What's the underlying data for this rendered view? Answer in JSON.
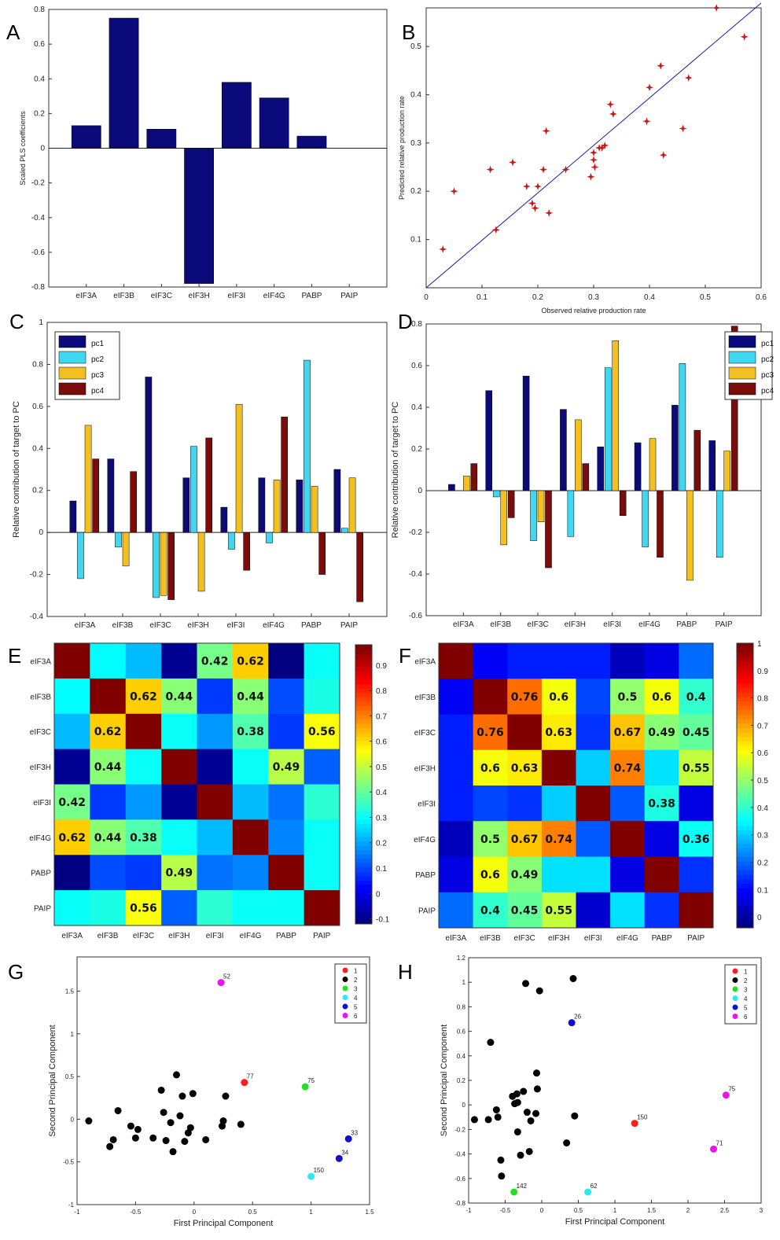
{
  "chart_data": [
    {
      "panel": "A",
      "type": "bar",
      "categories": [
        "eIF3A",
        "eIF3B",
        "eIF3C",
        "eIF3H",
        "eIF3I",
        "eIF4G",
        "PABP",
        "PAIP"
      ],
      "values": [
        0.13,
        0.75,
        0.11,
        -0.78,
        0.38,
        0.29,
        0.07,
        0
      ],
      "ylabel": "Scaled PLS coefficients",
      "ylim": [
        -0.8,
        0.8
      ],
      "yticks": [
        "0.8",
        "0.6",
        "0.4",
        "0.2",
        "0",
        "-0.2",
        "-0.4",
        "-0.6",
        "-0.8"
      ],
      "color": "#0a0a7a"
    },
    {
      "panel": "B",
      "type": "scatter",
      "xlabel": "Observed relative production rate",
      "ylabel": "Predicted relative production rate",
      "xlim": [
        0,
        0.6
      ],
      "ylim": [
        0,
        0.58
      ],
      "xticks": [
        "0",
        "0.1",
        "0.2",
        "0.3",
        "0.4",
        "0.5",
        "0.6"
      ],
      "yticks": [
        "0.1",
        "0.2",
        "0.3",
        "0.4",
        "0.5"
      ],
      "points": [
        [
          0.03,
          0.08
        ],
        [
          0.05,
          0.2
        ],
        [
          0.115,
          0.245
        ],
        [
          0.125,
          0.12
        ],
        [
          0.155,
          0.26
        ],
        [
          0.18,
          0.21
        ],
        [
          0.19,
          0.175
        ],
        [
          0.195,
          0.165
        ],
        [
          0.2,
          0.21
        ],
        [
          0.21,
          0.245
        ],
        [
          0.215,
          0.325
        ],
        [
          0.22,
          0.155
        ],
        [
          0.25,
          0.245
        ],
        [
          0.295,
          0.23
        ],
        [
          0.3,
          0.28
        ],
        [
          0.3,
          0.265
        ],
        [
          0.302,
          0.25
        ],
        [
          0.31,
          0.29
        ],
        [
          0.315,
          0.29
        ],
        [
          0.32,
          0.295
        ],
        [
          0.33,
          0.38
        ],
        [
          0.335,
          0.36
        ],
        [
          0.395,
          0.345
        ],
        [
          0.4,
          0.415
        ],
        [
          0.42,
          0.46
        ],
        [
          0.425,
          0.275
        ],
        [
          0.46,
          0.33
        ],
        [
          0.47,
          0.435
        ],
        [
          0.52,
          0.58
        ],
        [
          0.57,
          0.52
        ]
      ],
      "fit_line": [
        [
          0,
          0
        ],
        [
          0.6,
          0.59
        ]
      ],
      "marker_color": "#c81818",
      "line_color": "#1a1aa0"
    },
    {
      "panel": "C",
      "type": "bar",
      "categories": [
        "eIF3A",
        "eIF3B",
        "eIF3C",
        "eIF3H",
        "eIF3I",
        "eIF4G",
        "PABP",
        "PAIP"
      ],
      "ylabel": "Relative contribution of target to PC",
      "ylim": [
        -0.4,
        1
      ],
      "yticks": [
        "1",
        "0.8",
        "0.6",
        "0.4",
        "0.2",
        "0",
        "-0.2",
        "-0.4"
      ],
      "series": [
        {
          "name": "pc1",
          "color": "#0a0a7a",
          "values": [
            0.15,
            0.35,
            0.74,
            0.26,
            0.12,
            0.26,
            0.25,
            0.3
          ]
        },
        {
          "name": "pc2",
          "color": "#40d8f0",
          "values": [
            -0.22,
            -0.07,
            -0.31,
            0.41,
            -0.08,
            -0.05,
            0.82,
            0.02
          ]
        },
        {
          "name": "pc3",
          "color": "#f4c020",
          "values": [
            0.51,
            -0.16,
            -0.3,
            -0.28,
            0.61,
            0.25,
            0.22,
            0.26
          ]
        },
        {
          "name": "pc4",
          "color": "#7a0c0c",
          "values": [
            0.35,
            0.29,
            -0.32,
            0.45,
            -0.18,
            0.55,
            -0.2,
            -0.33
          ]
        }
      ],
      "legend": "top-left"
    },
    {
      "panel": "D",
      "type": "bar",
      "categories": [
        "eIF3A",
        "eIF3B",
        "eIF3C",
        "eIF3H",
        "eIF3I",
        "eIF4G",
        "PABP",
        "PAIP"
      ],
      "ylabel": "Relative contribution of target to PC",
      "ylim": [
        -0.6,
        0.8
      ],
      "yticks": [
        "0.8",
        "0.6",
        "0.4",
        "0.2",
        "0",
        "-0.2",
        "-0.4",
        "-0.6"
      ],
      "series": [
        {
          "name": "pc1",
          "color": "#0a0a7a",
          "values": [
            0.03,
            0.48,
            0.55,
            0.39,
            0.21,
            0.23,
            0.41,
            0.24
          ]
        },
        {
          "name": "pc2",
          "color": "#40d8f0",
          "values": [
            0,
            -0.03,
            -0.24,
            -0.22,
            0.59,
            -0.27,
            0.61,
            -0.32
          ]
        },
        {
          "name": "pc3",
          "color": "#f4c020",
          "values": [
            0.07,
            -0.26,
            -0.15,
            0.34,
            0.72,
            0.25,
            -0.43,
            0.19
          ]
        },
        {
          "name": "pc4",
          "color": "#7a0c0c",
          "values": [
            0.13,
            -0.13,
            -0.37,
            0.13,
            -0.12,
            -0.32,
            0.29,
            0.79
          ]
        }
      ],
      "legend": "top-right"
    },
    {
      "panel": "E",
      "type": "heatmap",
      "rows": [
        "eIF3A",
        "eIF3B",
        "eIF3C",
        "eIF3H",
        "eIF3I",
        "eIF4G",
        "PABP",
        "PAIP"
      ],
      "cols": [
        "eIF3A",
        "eIF3B",
        "eIF3C",
        "eIF3H",
        "eIF3I",
        "eIF4G",
        "PABP",
        "PAIP"
      ],
      "matrix": [
        [
          1,
          0.29,
          0.22,
          -0.1,
          0.42,
          0.62,
          -0.12,
          0.3
        ],
        [
          0.29,
          1,
          0.62,
          0.44,
          0.08,
          0.44,
          0.1,
          0.32
        ],
        [
          0.22,
          0.62,
          1,
          0.3,
          0.18,
          0.38,
          0.08,
          0.56
        ],
        [
          -0.1,
          0.44,
          0.3,
          1,
          -0.1,
          0.3,
          0.49,
          0.12
        ],
        [
          0.42,
          0.08,
          0.18,
          -0.1,
          1,
          0.22,
          0.14,
          0.34
        ],
        [
          0.62,
          0.44,
          0.38,
          0.3,
          0.22,
          1,
          0.16,
          0.3
        ],
        [
          -0.12,
          0.1,
          0.08,
          0.49,
          0.14,
          0.16,
          1,
          0.3
        ],
        [
          0.3,
          0.32,
          0.56,
          0.12,
          0.34,
          0.3,
          0.3,
          1
        ]
      ],
      "labels": [
        [
          null,
          null,
          null,
          null,
          "0.42",
          "0.62",
          null,
          null
        ],
        [
          null,
          null,
          "0.62",
          "0.44",
          null,
          "0.44",
          null,
          null
        ],
        [
          null,
          "0.62",
          null,
          null,
          null,
          "0.38",
          null,
          "0.56"
        ],
        [
          null,
          "0.44",
          null,
          null,
          null,
          null,
          "0.49",
          null
        ],
        [
          "0.42",
          null,
          null,
          null,
          null,
          null,
          null,
          null
        ],
        [
          "0.62",
          "0.44",
          "0.38",
          null,
          null,
          null,
          null,
          null
        ],
        [
          null,
          null,
          null,
          "0.49",
          null,
          null,
          null,
          null
        ],
        [
          null,
          null,
          "0.56",
          null,
          null,
          null,
          null,
          null
        ]
      ],
      "clim": [
        -0.12,
        0.98
      ],
      "colorbar_ticks": [
        "0.9",
        "0.8",
        "0.7",
        "0.6",
        "0.5",
        "0.4",
        "0.3",
        "0.2",
        "0.1",
        "0",
        "-0.1"
      ],
      "colormap": "jet"
    },
    {
      "panel": "F",
      "type": "heatmap",
      "rows": [
        "eIF3A",
        "eIF3B",
        "eIF3C",
        "eIF3H",
        "eIF3I",
        "eIF4G",
        "PABP",
        "PAIP"
      ],
      "cols": [
        "eIF3A",
        "eIF3B",
        "eIF3C",
        "eIF3H",
        "eIF3I",
        "eIF4G",
        "PABP",
        "PAIP"
      ],
      "matrix": [
        [
          1,
          0.08,
          0.12,
          0.12,
          0.12,
          0.02,
          0.06,
          0.2
        ],
        [
          0.08,
          1,
          0.76,
          0.6,
          0.16,
          0.5,
          0.6,
          0.4
        ],
        [
          0.12,
          0.76,
          1,
          0.63,
          0.14,
          0.67,
          0.49,
          0.45
        ],
        [
          0.12,
          0.6,
          0.63,
          1,
          0.3,
          0.74,
          0.32,
          0.55
        ],
        [
          0.12,
          0.16,
          0.14,
          0.3,
          1,
          0.18,
          0.38,
          0.06
        ],
        [
          0.02,
          0.5,
          0.67,
          0.74,
          0.18,
          1,
          0.06,
          0.36
        ],
        [
          0.06,
          0.6,
          0.49,
          0.32,
          0.32,
          0.06,
          1,
          0.14
        ],
        [
          0.2,
          0.4,
          0.45,
          0.55,
          0.04,
          0.32,
          0.14,
          1
        ]
      ],
      "labels": [
        [
          null,
          null,
          null,
          null,
          null,
          null,
          null,
          null
        ],
        [
          null,
          null,
          "0.76",
          "0.6",
          null,
          "0.5",
          "0.6",
          "0.4"
        ],
        [
          null,
          "0.76",
          null,
          "0.63",
          null,
          "0.67",
          "0.49",
          "0.45"
        ],
        [
          null,
          "0.6",
          "0.63",
          null,
          null,
          "0.74",
          null,
          "0.55"
        ],
        [
          null,
          null,
          null,
          null,
          null,
          null,
          "0.38",
          null
        ],
        [
          null,
          "0.5",
          "0.67",
          "0.74",
          null,
          null,
          null,
          "0.36"
        ],
        [
          null,
          "0.6",
          "0.49",
          null,
          null,
          null,
          null,
          null
        ],
        [
          null,
          "0.4",
          "0.45",
          "0.55",
          null,
          null,
          null,
          null
        ]
      ],
      "clim": [
        -0.04,
        1
      ],
      "colorbar_ticks": [
        "1",
        "0.9",
        "0.8",
        "0.7",
        "0.6",
        "0.5",
        "0.4",
        "0.3",
        "0.2",
        "0.1",
        "0"
      ],
      "colormap": "jet"
    },
    {
      "panel": "G",
      "type": "scatter",
      "xlabel": "First Principal Component",
      "ylabel": "Second Principal Component",
      "xlim": [
        -1,
        1.5
      ],
      "ylim": [
        -1,
        1.9
      ],
      "xticks": [
        "-1",
        "-0.5",
        "0",
        "0.5",
        "1",
        "1.5"
      ],
      "yticks": [
        "1.5",
        "1",
        "0.5",
        "0",
        "-0.5",
        "-1"
      ],
      "legend": [
        "1",
        "2",
        "3",
        "4",
        "5",
        "6"
      ],
      "legend_colors": [
        "#ff1e1e",
        "#000000",
        "#22e022",
        "#30e8f0",
        "#1010d0",
        "#f010f0"
      ],
      "points": [
        {
          "x": 0.43,
          "y": 0.43,
          "cluster": 1,
          "label": "77"
        },
        {
          "x": 0.95,
          "y": 0.38,
          "cluster": 3,
          "label": "75"
        },
        {
          "x": 1.0,
          "y": -0.67,
          "cluster": 4,
          "label": "150"
        },
        {
          "x": 1.32,
          "y": -0.23,
          "cluster": 5,
          "label": "33"
        },
        {
          "x": 1.24,
          "y": -0.46,
          "cluster": 5,
          "label": "34"
        },
        {
          "x": 0.23,
          "y": 1.6,
          "cluster": 6,
          "label": "52"
        },
        {
          "x": -0.9,
          "y": -0.02,
          "cluster": 2
        },
        {
          "x": -0.72,
          "y": -0.32,
          "cluster": 2
        },
        {
          "x": -0.69,
          "y": -0.24,
          "cluster": 2
        },
        {
          "x": -0.65,
          "y": 0.1,
          "cluster": 2
        },
        {
          "x": -0.54,
          "y": -0.08,
          "cluster": 2
        },
        {
          "x": -0.5,
          "y": -0.22,
          "cluster": 2
        },
        {
          "x": -0.48,
          "y": -0.12,
          "cluster": 2
        },
        {
          "x": -0.35,
          "y": -0.22,
          "cluster": 2
        },
        {
          "x": -0.28,
          "y": 0.34,
          "cluster": 2
        },
        {
          "x": -0.26,
          "y": 0.08,
          "cluster": 2
        },
        {
          "x": -0.24,
          "y": -0.25,
          "cluster": 2
        },
        {
          "x": -0.2,
          "y": -0.04,
          "cluster": 2
        },
        {
          "x": -0.18,
          "y": -0.38,
          "cluster": 2
        },
        {
          "x": -0.15,
          "y": 0.52,
          "cluster": 2
        },
        {
          "x": -0.12,
          "y": 0.04,
          "cluster": 2
        },
        {
          "x": -0.1,
          "y": 0.27,
          "cluster": 2
        },
        {
          "x": -0.08,
          "y": -0.26,
          "cluster": 2
        },
        {
          "x": -0.05,
          "y": -0.16,
          "cluster": 2
        },
        {
          "x": -0.03,
          "y": -0.1,
          "cluster": 2
        },
        {
          "x": -0.01,
          "y": 0.3,
          "cluster": 2
        },
        {
          "x": 0.1,
          "y": -0.24,
          "cluster": 2
        },
        {
          "x": 0.24,
          "y": -0.08,
          "cluster": 2
        },
        {
          "x": 0.25,
          "y": -0.02,
          "cluster": 2
        },
        {
          "x": 0.27,
          "y": 0.27,
          "cluster": 2
        },
        {
          "x": 0.4,
          "y": -0.06,
          "cluster": 2
        }
      ]
    },
    {
      "panel": "H",
      "type": "scatter",
      "xlabel": "First Principal Component",
      "ylabel": "Second Principal Component",
      "xlim": [
        -1,
        3
      ],
      "ylim": [
        -0.8,
        1.2
      ],
      "xticks": [
        "-1",
        "-0.5",
        "0",
        "0.5",
        "1",
        "1.5",
        "2",
        "2.5",
        "3"
      ],
      "yticks": [
        "1.2",
        "1",
        "0.8",
        "0.6",
        "0.4",
        "0.2",
        "0",
        "-0.2",
        "-0.4",
        "-0.6",
        "-0.8"
      ],
      "legend": [
        "1",
        "2",
        "3",
        "4",
        "5",
        "6"
      ],
      "legend_colors": [
        "#ff1e1e",
        "#000000",
        "#22e022",
        "#30e8f0",
        "#1010d0",
        "#f010f0"
      ],
      "points": [
        {
          "x": 1.27,
          "y": -0.15,
          "cluster": 1,
          "label": "150"
        },
        {
          "x": -0.38,
          "y": -0.71,
          "cluster": 3,
          "label": "142"
        },
        {
          "x": 0.63,
          "y": -0.71,
          "cluster": 4,
          "label": "62"
        },
        {
          "x": 0.41,
          "y": 0.67,
          "cluster": 5,
          "label": "26"
        },
        {
          "x": 2.52,
          "y": 0.08,
          "cluster": 6,
          "label": "75"
        },
        {
          "x": 2.35,
          "y": -0.36,
          "cluster": 6,
          "label": "71"
        },
        {
          "x": -0.92,
          "y": -0.12,
          "cluster": 2
        },
        {
          "x": -0.73,
          "y": -0.12,
          "cluster": 2
        },
        {
          "x": -0.7,
          "y": 0.51,
          "cluster": 2
        },
        {
          "x": -0.62,
          "y": -0.04,
          "cluster": 2
        },
        {
          "x": -0.6,
          "y": -0.1,
          "cluster": 2
        },
        {
          "x": -0.56,
          "y": -0.45,
          "cluster": 2
        },
        {
          "x": -0.55,
          "y": -0.58,
          "cluster": 2
        },
        {
          "x": -0.4,
          "y": 0.07,
          "cluster": 2
        },
        {
          "x": -0.37,
          "y": 0.01,
          "cluster": 2
        },
        {
          "x": -0.34,
          "y": 0.09,
          "cluster": 2
        },
        {
          "x": -0.33,
          "y": 0.02,
          "cluster": 2
        },
        {
          "x": -0.33,
          "y": -0.22,
          "cluster": 2
        },
        {
          "x": -0.29,
          "y": -0.41,
          "cluster": 2
        },
        {
          "x": -0.25,
          "y": 0.11,
          "cluster": 2
        },
        {
          "x": -0.22,
          "y": 0.99,
          "cluster": 2
        },
        {
          "x": -0.2,
          "y": -0.06,
          "cluster": 2
        },
        {
          "x": -0.17,
          "y": -0.38,
          "cluster": 2
        },
        {
          "x": -0.15,
          "y": -0.13,
          "cluster": 2
        },
        {
          "x": -0.08,
          "y": -0.07,
          "cluster": 2
        },
        {
          "x": -0.07,
          "y": 0.26,
          "cluster": 2
        },
        {
          "x": -0.06,
          "y": 0.13,
          "cluster": 2
        },
        {
          "x": -0.03,
          "y": 0.93,
          "cluster": 2
        },
        {
          "x": 0.34,
          "y": -0.31,
          "cluster": 2
        },
        {
          "x": 0.43,
          "y": 1.03,
          "cluster": 2
        },
        {
          "x": 0.45,
          "y": -0.09,
          "cluster": 2
        }
      ]
    }
  ]
}
